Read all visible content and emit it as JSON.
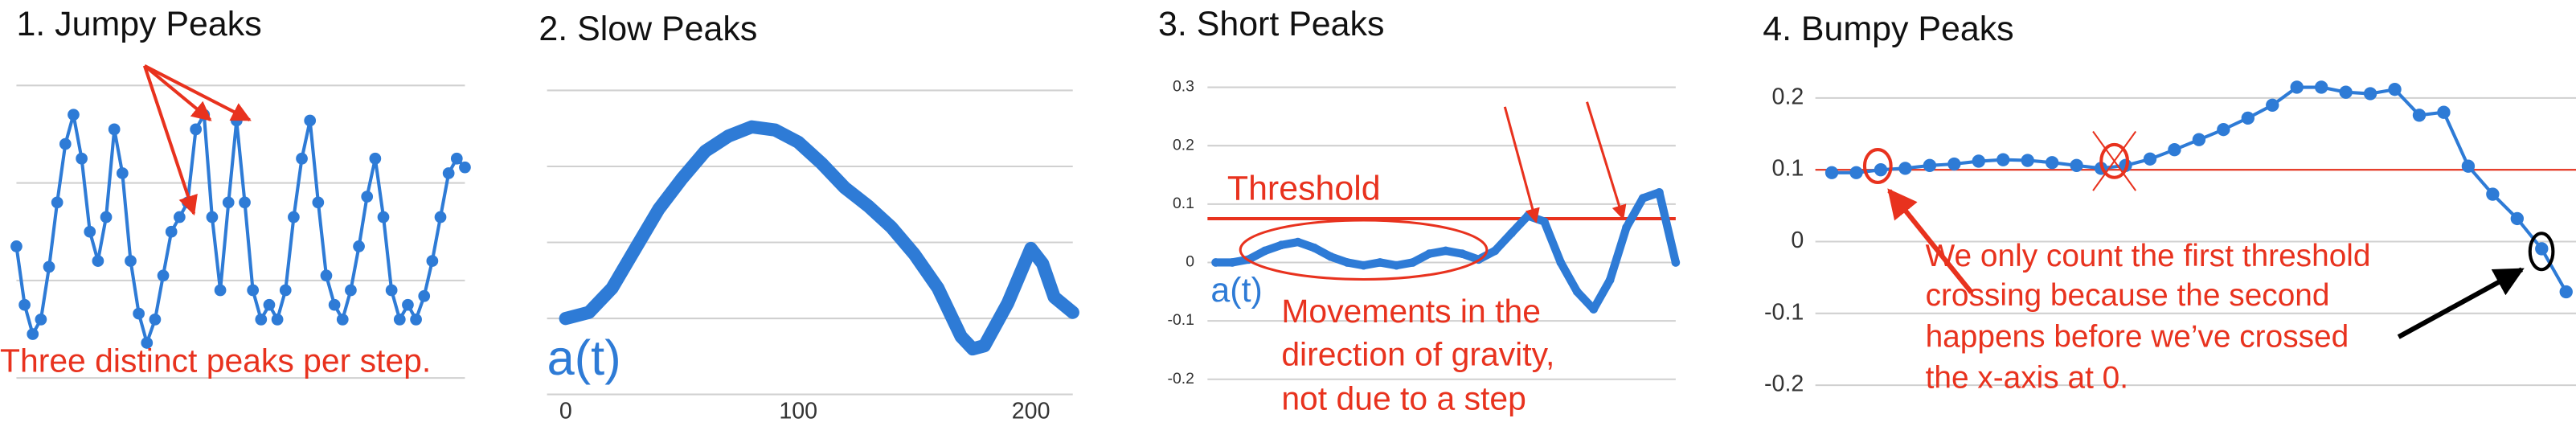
{
  "chart_data": [
    {
      "type": "line",
      "title": "1. Jumpy Peaks",
      "color": "#2e7bd6",
      "grid": true,
      "ylim": [
        0,
        1
      ],
      "values": [
        0.45,
        0.25,
        0.15,
        0.2,
        0.38,
        0.6,
        0.8,
        0.9,
        0.75,
        0.5,
        0.4,
        0.55,
        0.85,
        0.7,
        0.4,
        0.22,
        0.12,
        0.2,
        0.35,
        0.5,
        0.55,
        0.6,
        0.85,
        0.9,
        0.55,
        0.3,
        0.6,
        0.88,
        0.6,
        0.3,
        0.2,
        0.25,
        0.2,
        0.3,
        0.55,
        0.75,
        0.88,
        0.6,
        0.35,
        0.25,
        0.2,
        0.3,
        0.45,
        0.62,
        0.75,
        0.55,
        0.3,
        0.2,
        0.25,
        0.2,
        0.28,
        0.4,
        0.55,
        0.7,
        0.75,
        0.72
      ],
      "annotations": [
        "Three distinct peaks per step."
      ]
    },
    {
      "type": "line",
      "title": "2. Slow Peaks",
      "color": "#2e7bd6",
      "grid": true,
      "ylim": [
        0,
        1
      ],
      "xlim": [
        -8,
        218
      ],
      "xticks": [
        0,
        100,
        200
      ],
      "x": [
        0,
        10,
        20,
        30,
        40,
        50,
        60,
        70,
        80,
        90,
        100,
        110,
        120,
        130,
        140,
        150,
        160,
        170,
        175,
        180,
        190,
        200,
        205,
        210,
        218
      ],
      "values": [
        0.25,
        0.27,
        0.35,
        0.48,
        0.61,
        0.71,
        0.8,
        0.85,
        0.88,
        0.87,
        0.83,
        0.76,
        0.68,
        0.62,
        0.55,
        0.46,
        0.35,
        0.19,
        0.15,
        0.16,
        0.3,
        0.48,
        0.43,
        0.32,
        0.27
      ],
      "annotations": [
        "a(t)"
      ]
    },
    {
      "type": "line",
      "title": "3. Short Peaks",
      "color": "#2e7bd6",
      "grid": true,
      "ylim": [
        -0.24,
        0.32
      ],
      "yticks": [
        0.3,
        0.2,
        0.1,
        0,
        -0.1,
        -0.2
      ],
      "threshold": 0.075,
      "threshold_color": "#e8321e",
      "values": [
        0,
        0,
        0.005,
        0.02,
        0.03,
        0.035,
        0.025,
        0.01,
        0,
        -0.005,
        0,
        -0.005,
        0,
        0.015,
        0.02,
        0.015,
        0.005,
        0.02,
        0.05,
        0.08,
        0.07,
        0,
        -0.05,
        -0.08,
        -0.03,
        0.06,
        0.11,
        0.12,
        0
      ],
      "annotations": [
        "Threshold",
        "a(t)",
        "Movements in the",
        "direction of gravity,",
        "not due to a step"
      ]
    },
    {
      "type": "line",
      "title": "4. Bumpy Peaks",
      "color": "#2e7bd6",
      "grid": true,
      "ylim": [
        -0.23,
        0.23
      ],
      "yticks": [
        0.2,
        0.1,
        0,
        -0.1,
        -0.2
      ],
      "threshold": 0.1,
      "threshold_color": "#e8321e",
      "values": [
        0.096,
        0.096,
        0.1,
        0.102,
        0.106,
        0.108,
        0.112,
        0.114,
        0.113,
        0.11,
        0.106,
        0.102,
        0.106,
        0.115,
        0.128,
        0.142,
        0.156,
        0.172,
        0.19,
        0.215,
        0.215,
        0.208,
        0.206,
        0.212,
        0.176,
        0.18,
        0.105,
        0.066,
        0.032,
        -0.01,
        -0.07
      ],
      "annotations": [
        "We only count the first threshold",
        "crossing because the second",
        "happens before we’ve crossed",
        "the x-axis at 0."
      ]
    }
  ]
}
